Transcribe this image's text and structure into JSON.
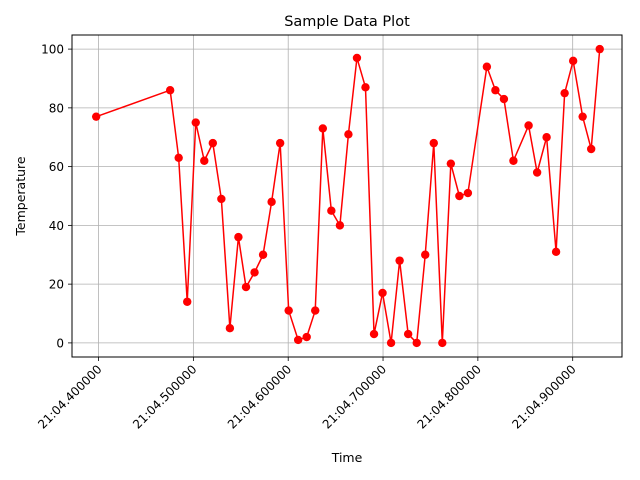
{
  "chart_data": {
    "type": "line",
    "title": "Sample Data Plot",
    "xlabel": "Time",
    "ylabel": "Temperature",
    "x_tick_labels": [
      "21:04.400000",
      "21:04.500000",
      "21:04.600000",
      "21:04.700000",
      "21:04.800000",
      "21:04.900000"
    ],
    "x_tick_values": [
      0.4,
      0.5,
      0.6,
      0.7,
      0.8,
      0.9
    ],
    "xlim": [
      0.372,
      0.952
    ],
    "y_tick_labels": [
      "0",
      "20",
      "40",
      "60",
      "80",
      "100"
    ],
    "y_tick_values": [
      0,
      20,
      40,
      60,
      80,
      100
    ],
    "ylim": [
      -4.8,
      104.8
    ],
    "grid": true,
    "colors": {
      "series": "#ff0000",
      "grid": "#b0b0b0",
      "axis": "#000000"
    },
    "series": [
      {
        "x": [
          0.3975,
          0.4755,
          0.4845,
          0.4935,
          0.5025,
          0.5115,
          0.5205,
          0.5295,
          0.5385,
          0.5475,
          0.5555,
          0.5645,
          0.5735,
          0.5825,
          0.5915,
          0.6005,
          0.6105,
          0.6195,
          0.6285,
          0.6365,
          0.6455,
          0.6545,
          0.6635,
          0.6725,
          0.6815,
          0.6905,
          0.6995,
          0.7085,
          0.7175,
          0.7265,
          0.7355,
          0.7445,
          0.7535,
          0.7625,
          0.7715,
          0.7805,
          0.7895,
          0.8095,
          0.8185,
          0.8275,
          0.8375,
          0.8535,
          0.8625,
          0.8725,
          0.8825,
          0.8915,
          0.9005,
          0.9105,
          0.9195,
          0.9285
        ],
        "values": [
          77,
          86,
          63,
          14,
          75,
          62,
          68,
          49,
          5,
          36,
          19,
          24,
          30,
          48,
          68,
          11,
          1,
          2,
          11,
          73,
          45,
          40,
          71,
          97,
          87,
          3,
          17,
          0,
          28,
          3,
          0,
          30,
          68,
          0,
          61,
          50,
          51,
          94,
          86,
          83,
          62,
          74,
          58,
          70,
          31,
          85,
          96,
          77,
          66,
          100
        ]
      }
    ]
  }
}
